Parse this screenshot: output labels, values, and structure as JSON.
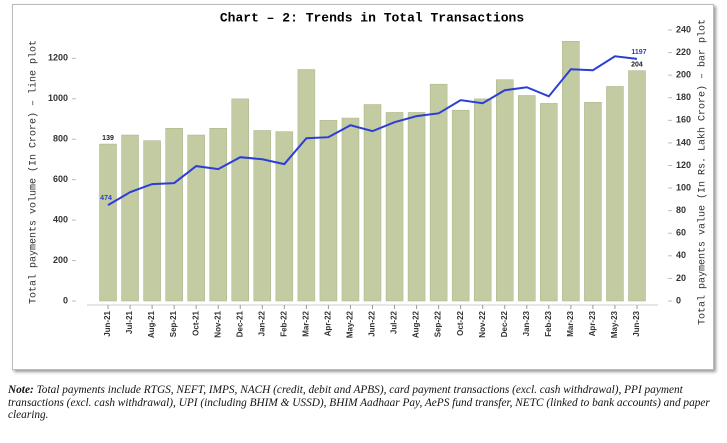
{
  "chart_data": {
    "type": "bar-line",
    "title": "Chart – 2: Trends in Total Transactions",
    "y_label": "Total payments volume (In Crore) – line plot",
    "y2_label": "Total payments value (In Rs. Lakh Crore) – bar plot",
    "categories": [
      "Jun-21",
      "Jul-21",
      "Aug-21",
      "Sep-21",
      "Oct-21",
      "Nov-21",
      "Dec-21",
      "Jan-22",
      "Feb-22",
      "Mar-22",
      "Apr-22",
      "May-22",
      "Jun-22",
      "Jul-22",
      "Aug-22",
      "Sep-22",
      "Oct-22",
      "Nov-22",
      "Dec-22",
      "Jan-23",
      "Feb-23",
      "Mar-23",
      "Apr-23",
      "May-23",
      "Jun-23"
    ],
    "series": [
      {
        "type": "bar",
        "axis": "y2",
        "color": "#c3cba3",
        "values": [
          139,
          147,
          142,
          153,
          147,
          153,
          179,
          151,
          150,
          205,
          160,
          162,
          174,
          167,
          167,
          192,
          169,
          179,
          196,
          182,
          175,
          230,
          176,
          190,
          204
        ]
      },
      {
        "type": "line",
        "axis": "y",
        "color": "#2b3fd4",
        "values": [
          474,
          538,
          578,
          583,
          667,
          652,
          711,
          701,
          677,
          805,
          810,
          869,
          840,
          884,
          914,
          928,
          993,
          978,
          1042,
          1057,
          1012,
          1146,
          1141,
          1210,
          1197
        ]
      }
    ],
    "ylim": [
      0,
      1340
    ],
    "yticks": [
      0,
      200,
      400,
      600,
      800,
      1000,
      1200
    ],
    "y2lim": [
      0,
      240
    ],
    "y2ticks": [
      0,
      20,
      40,
      60,
      80,
      100,
      120,
      140,
      160,
      180,
      200,
      220,
      240
    ],
    "grid": false
  },
  "note": {
    "label": "Note:",
    "text": "Total payments include RTGS, NEFT, IMPS, NACH (credit, debit and APBS), card payment transactions (excl. cash withdrawal), PPI payment transactions (excl. cash withdrawal), UPI (including BHIM & USSD), BHIM Aadhaar Pay, AePS fund transfer, NETC (linked to bank accounts) and paper clearing."
  }
}
